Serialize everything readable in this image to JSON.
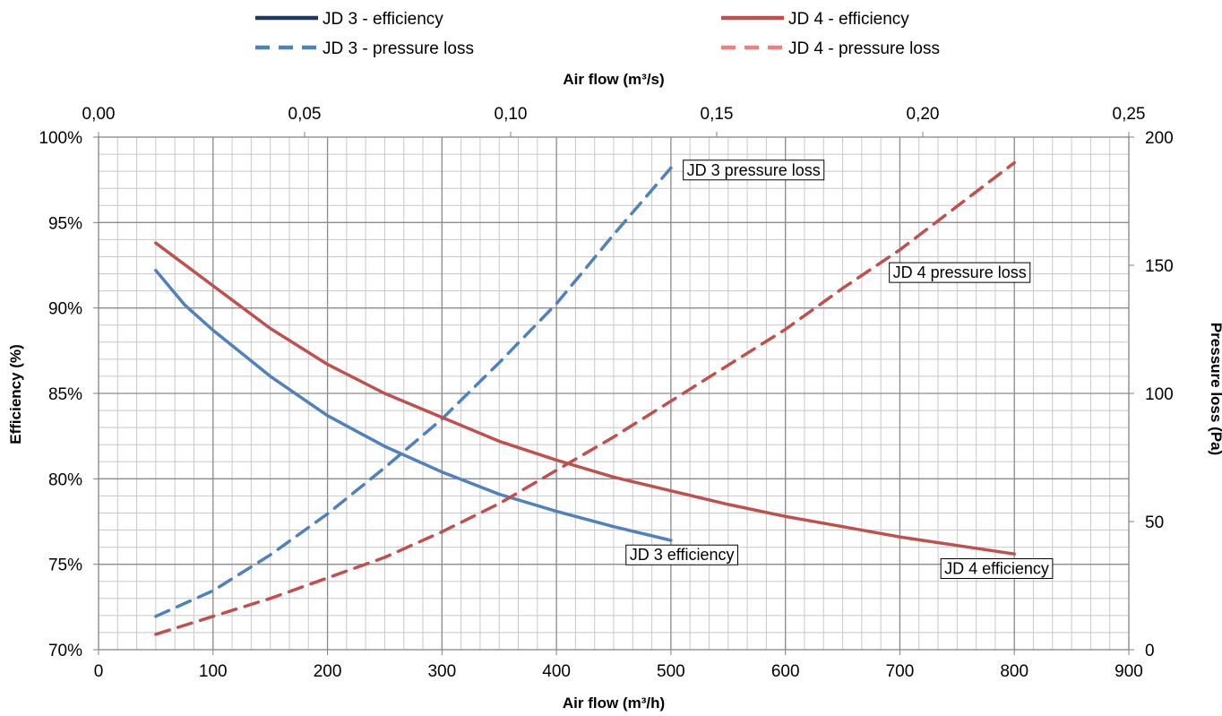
{
  "chart_data": {
    "type": "line",
    "x_axis_bottom": {
      "label": "Air flow (m³/h)",
      "range": [
        0,
        900
      ],
      "ticks": [
        "0",
        "100",
        "200",
        "300",
        "400",
        "500",
        "600",
        "700",
        "800",
        "900"
      ]
    },
    "x_axis_top": {
      "label": "Air flow (m³/s)",
      "range": [
        0,
        0.25
      ],
      "ticks": [
        "0,00",
        "0,05",
        "0,10",
        "0,15",
        "0,20",
        "0,25"
      ]
    },
    "y_axis_left": {
      "label": "Efficiency (%)",
      "range": [
        70,
        100
      ],
      "ticks": [
        "70%",
        "75%",
        "80%",
        "85%",
        "90%",
        "95%",
        "100%"
      ]
    },
    "y_axis_right": {
      "label": "Pressure loss (Pa)",
      "range": [
        0,
        200
      ],
      "ticks": [
        "0",
        "50",
        "100",
        "150",
        "200"
      ]
    },
    "grid": true,
    "legend_position": "top",
    "series": [
      {
        "name": "JD 3 - efficiency",
        "axis": "left",
        "style": "solid",
        "color": "#4f81bd",
        "legend_color": "#1f3864",
        "x": [
          50,
          75,
          100,
          150,
          200,
          250,
          300,
          350,
          400,
          450,
          500
        ],
        "y": [
          92.2,
          90.2,
          88.7,
          86.0,
          83.7,
          81.9,
          80.4,
          79.1,
          78.1,
          77.2,
          76.4
        ]
      },
      {
        "name": "JD 3 - pressure loss",
        "axis": "right",
        "style": "dashed",
        "color": "#4f81bd",
        "legend_color": "#4f81bd",
        "x": [
          50,
          100,
          150,
          200,
          250,
          300,
          350,
          400,
          450,
          500
        ],
        "y": [
          13,
          23,
          37,
          53,
          71,
          90,
          112,
          135,
          162,
          188
        ]
      },
      {
        "name": "JD 4 - efficiency",
        "axis": "left",
        "style": "solid",
        "color": "#c0504d",
        "legend_color": "#c0504d",
        "x": [
          50,
          100,
          150,
          200,
          250,
          300,
          350,
          400,
          450,
          500,
          550,
          600,
          650,
          700,
          750,
          800
        ],
        "y": [
          93.8,
          91.3,
          88.8,
          86.7,
          85.0,
          83.6,
          82.2,
          81.1,
          80.1,
          79.3,
          78.5,
          77.8,
          77.2,
          76.6,
          76.1,
          75.6
        ]
      },
      {
        "name": "JD 4 - pressure loss",
        "axis": "right",
        "style": "dashed",
        "color": "#c0504d",
        "legend_color": "#f08080",
        "x": [
          50,
          100,
          150,
          200,
          250,
          300,
          350,
          400,
          450,
          500,
          550,
          600,
          650,
          700,
          750,
          800
        ],
        "y": [
          6,
          13,
          20,
          28,
          36,
          46,
          57,
          70,
          83,
          97,
          111,
          125,
          141,
          156,
          173,
          190
        ]
      }
    ],
    "annotations": [
      {
        "text": "JD 3 pressure loss",
        "x": 510,
        "y": 187.5
      },
      {
        "text": "JD 4 pressure loss",
        "x": 690,
        "y": 147.5
      },
      {
        "text": "JD 3 efficiency",
        "x": 460,
        "y": 75.6
      },
      {
        "text": "JD 4 efficiency",
        "x": 735,
        "y": 74.8
      }
    ]
  }
}
